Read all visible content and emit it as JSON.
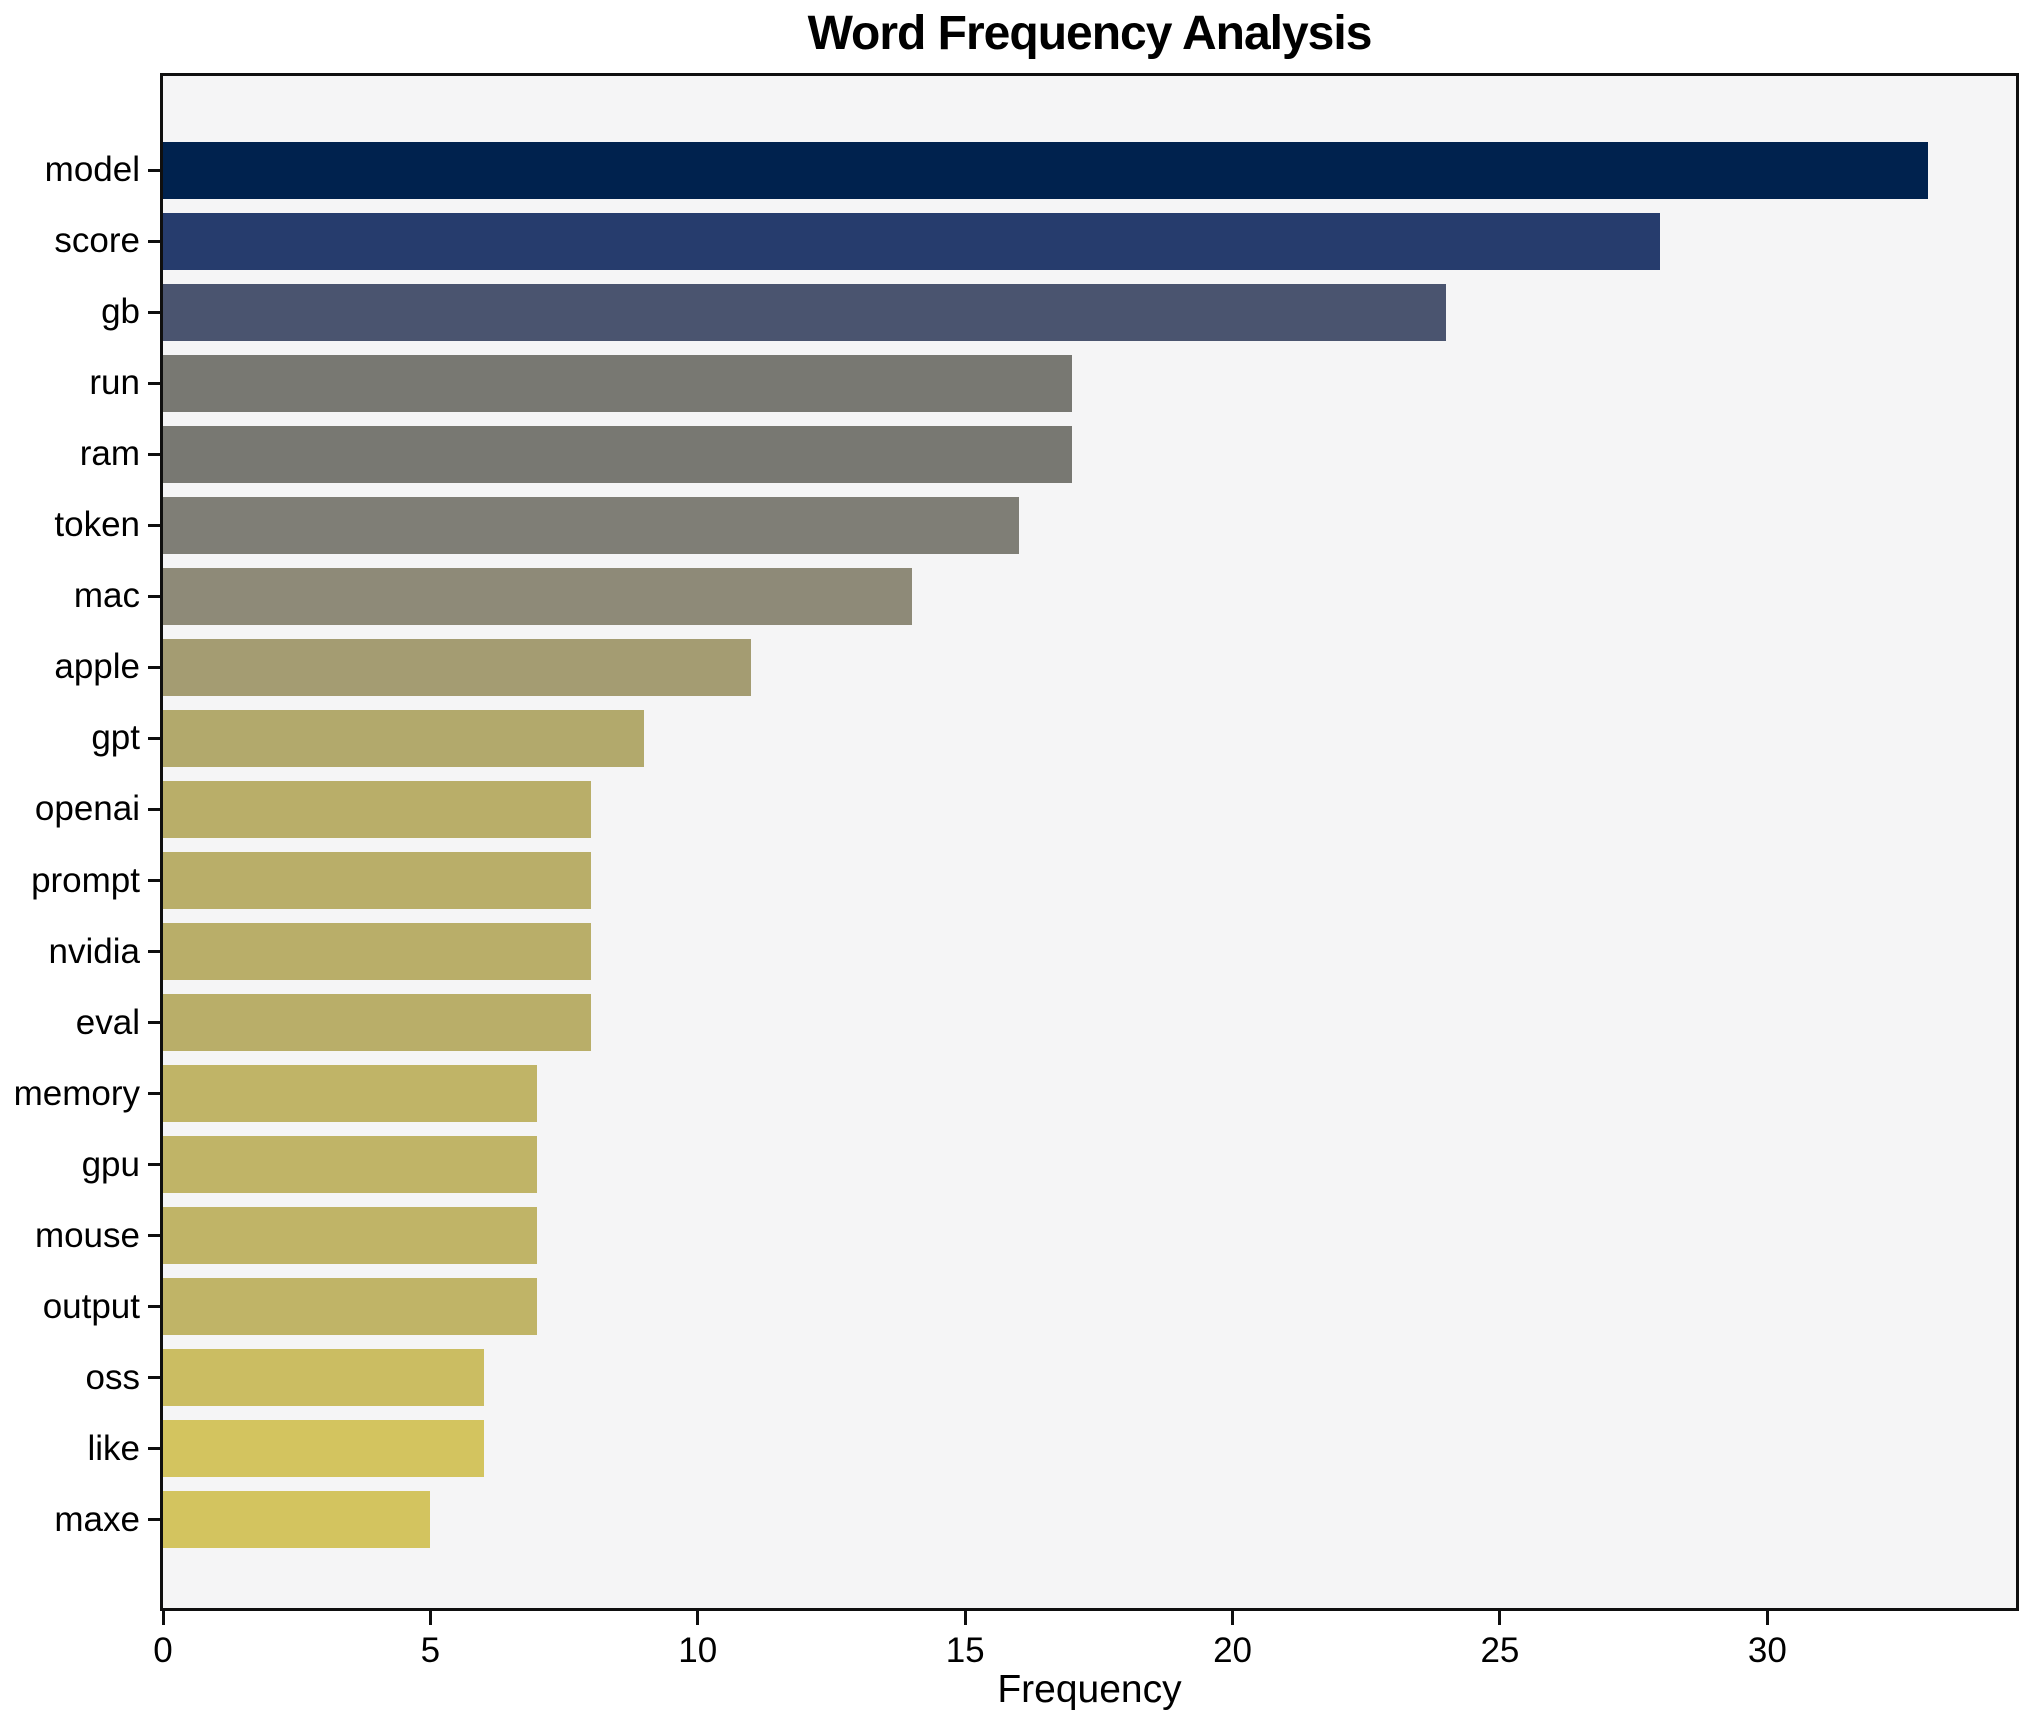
{
  "chart_data": {
    "type": "bar",
    "orientation": "horizontal",
    "title": "Word Frequency Analysis",
    "xlabel": "Frequency",
    "ylabel": "",
    "categories": [
      "model",
      "score",
      "gb",
      "run",
      "ram",
      "token",
      "mac",
      "apple",
      "gpt",
      "openai",
      "prompt",
      "nvidia",
      "eval",
      "memory",
      "gpu",
      "mouse",
      "output",
      "oss",
      "like",
      "maxe"
    ],
    "values": [
      33,
      28,
      24,
      17,
      17,
      16,
      14,
      11,
      9,
      8,
      8,
      8,
      8,
      7,
      7,
      7,
      7,
      6,
      6,
      5
    ],
    "bar_colors": [
      "#00224e",
      "#263c6d",
      "#4a546f",
      "#787872",
      "#787872",
      "#7f7e76",
      "#8e8a78",
      "#a49c72",
      "#b2a96c",
      "#b9ae69",
      "#b9ae69",
      "#b9ae69",
      "#b9ae69",
      "#c0b467",
      "#c0b467",
      "#c0b467",
      "#c0b467",
      "#cbbd62",
      "#d3c45f",
      "#d3c45f"
    ],
    "xticks": [
      0,
      5,
      10,
      15,
      20,
      25,
      30
    ],
    "xlim": [
      0,
      34.65
    ],
    "grid": false,
    "legend": null,
    "plot_background": "#f5f5f6",
    "figure_background": "#ffffff",
    "spine_color": "#0f0f0f"
  }
}
